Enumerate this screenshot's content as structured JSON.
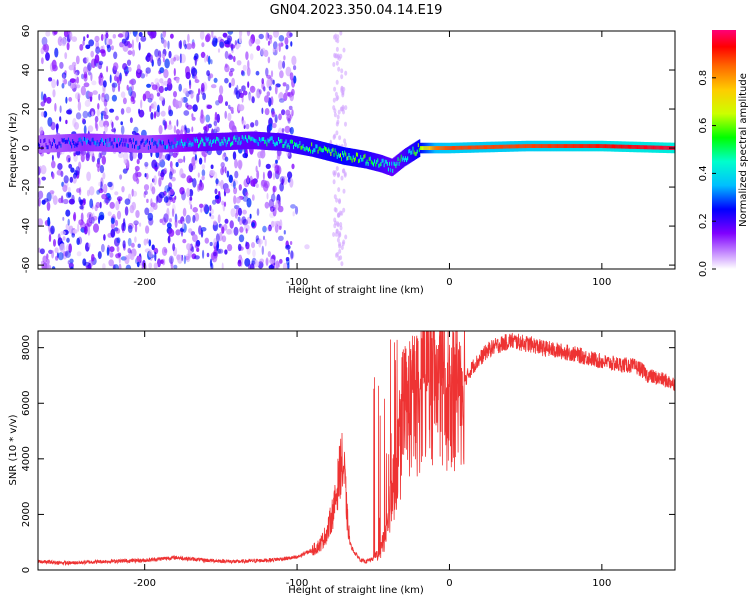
{
  "title": "GN04.2023.350.04.14.E19",
  "colors": {
    "snr_line": "#ee3333",
    "spectral_scale": [
      "#ffffff",
      "#cc99ff",
      "#7f00ff",
      "#0000ff",
      "#00bfff",
      "#00ffcc",
      "#00ff00",
      "#ccff00",
      "#ffcc00",
      "#ff6600",
      "#ff0000",
      "#ff0077"
    ]
  },
  "chart_data": [
    {
      "type": "heatmap",
      "xlabel": "Height of straight line (km)",
      "ylabel": "Frequency (Hz)",
      "xlim": [
        -270,
        148
      ],
      "ylim": [
        -62,
        60
      ],
      "xticks": [
        -200,
        -100,
        0,
        100
      ],
      "yticks": [
        -60,
        -40,
        -20,
        0,
        20,
        40,
        60
      ],
      "colorbar": {
        "label": "Normalized spectral amplitude",
        "range": [
          0,
          1
        ],
        "ticks": [
          0.0,
          0.2,
          0.4,
          0.6,
          0.8
        ]
      },
      "signal_ridge": {
        "x": [
          -270,
          -240,
          -200,
          -160,
          -130,
          -110,
          -90,
          -70,
          -55,
          -45,
          -38,
          -30,
          -20,
          -10,
          0,
          50,
          100,
          148
        ],
        "frequency": [
          2,
          3,
          2,
          3,
          4,
          3,
          0,
          -4,
          -6,
          -8,
          -10,
          -5,
          0,
          0,
          0,
          1,
          1,
          0
        ],
        "amplitude": [
          0.25,
          0.35,
          0.3,
          0.45,
          0.45,
          0.5,
          0.55,
          0.6,
          0.55,
          0.5,
          0.45,
          0.5,
          0.6,
          0.8,
          0.85,
          0.85,
          0.9,
          0.95
        ]
      },
      "noise_region": {
        "x_range": [
          -270,
          -100
        ],
        "frequency_range": [
          -62,
          60
        ],
        "amplitude": 0.15
      }
    },
    {
      "type": "line",
      "xlabel": "Height of straight line (km)",
      "ylabel": "SNR (10 * v/v)",
      "xlim": [
        -270,
        148
      ],
      "ylim": [
        0,
        8600
      ],
      "xticks": [
        -200,
        -100,
        0,
        100
      ],
      "yticks": [
        0,
        2000,
        4000,
        6000,
        8000
      ],
      "series": [
        {
          "x": [
            -270,
            -250,
            -230,
            -200,
            -180,
            -160,
            -140,
            -120,
            -110,
            -100,
            -95,
            -90,
            -85,
            -80,
            -78,
            -75,
            -73,
            -71,
            -69,
            -67,
            -65,
            -62,
            -58,
            -55,
            -50,
            -45,
            -43,
            -41,
            -39,
            -37,
            -35,
            -33,
            -31,
            -29,
            -27,
            -25,
            -22,
            -20,
            -18,
            -15,
            -12,
            -10,
            -5,
            0,
            5,
            10,
            15,
            20,
            25,
            30,
            35,
            40,
            45,
            50,
            55,
            60,
            70,
            80,
            90,
            100,
            110,
            120,
            125,
            130,
            140,
            148
          ],
          "values": [
            300,
            250,
            300,
            350,
            450,
            350,
            300,
            350,
            400,
            450,
            600,
            700,
            900,
            1400,
            1800,
            2400,
            3200,
            3900,
            3500,
            1800,
            900,
            600,
            350,
            300,
            400,
            700,
            1100,
            1600,
            2300,
            3000,
            3600,
            4200,
            4600,
            5200,
            5800,
            6000,
            5900,
            6200,
            6500,
            7000,
            6800,
            6900,
            6600,
            6300,
            6500,
            6800,
            7300,
            7600,
            7900,
            8050,
            8150,
            8250,
            8200,
            8150,
            8100,
            8000,
            7900,
            7800,
            7650,
            7500,
            7400,
            7350,
            7250,
            7000,
            6850,
            6700
          ]
        }
      ]
    }
  ]
}
